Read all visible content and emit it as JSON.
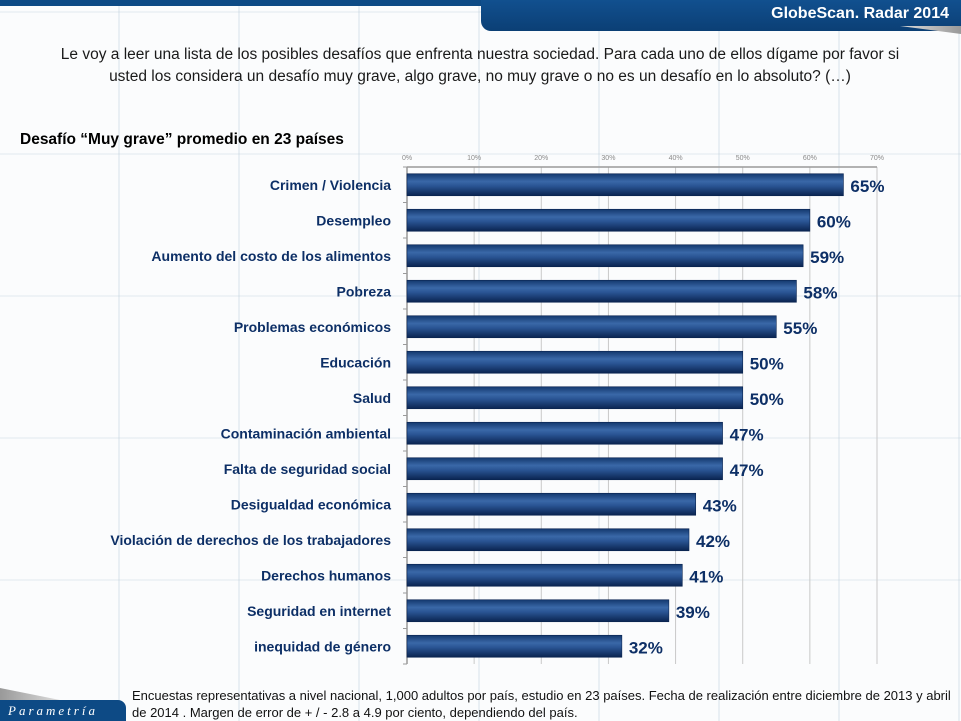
{
  "header": {
    "title": "GlobeScan. Radar 2014"
  },
  "question": "Le voy a leer una lista de los posibles desafíos que enfrenta nuestra sociedad. Para cada uno de ellos dígame por favor si usted los considera un desafío muy grave, algo grave, no muy grave o no es un desafío en lo absoluto? (…)",
  "subtitle": "Desafío “Muy grave” promedio en 23 países",
  "footer": {
    "note": "Encuestas representativas a nivel nacional, 1,000 adultos por país, estudio en 23 países. Fecha de realización entre diciembre de 2013 y abril de 2014 . Margen de error  de + / - 2.8 a 4.9 por ciento, dependiendo del país.",
    "logo": "Parametría"
  },
  "colors": {
    "bar": "#1f4a86",
    "label": "#0d2f66",
    "header": "#0d4a85"
  },
  "chart_data": {
    "type": "bar",
    "orientation": "horizontal",
    "title": "Desafío “Muy grave” promedio en 23 países",
    "xlabel": "",
    "ylabel": "",
    "xlim": [
      0,
      70
    ],
    "xticks": [
      "0%",
      "10%",
      "20%",
      "30%",
      "40%",
      "50%",
      "60%",
      "70%"
    ],
    "grid": true,
    "categories": [
      "Crimen / Violencia",
      "Desempleo",
      "Aumento del costo de los alimentos",
      "Pobreza",
      "Problemas económicos",
      "Educación",
      "Salud",
      "Contaminación ambiental",
      "Falta de seguridad social",
      "Desigualdad económica",
      "Violación de derechos de los trabajadores",
      "Derechos humanos",
      "Seguridad en internet",
      "inequidad de género"
    ],
    "values": [
      65,
      60,
      59,
      58,
      55,
      50,
      50,
      47,
      47,
      43,
      42,
      41,
      39,
      32
    ],
    "data_labels": [
      "65%",
      "60%",
      "59%",
      "58%",
      "55%",
      "50%",
      "50%",
      "47%",
      "47%",
      "43%",
      "42%",
      "41%",
      "39%",
      "32%"
    ]
  }
}
